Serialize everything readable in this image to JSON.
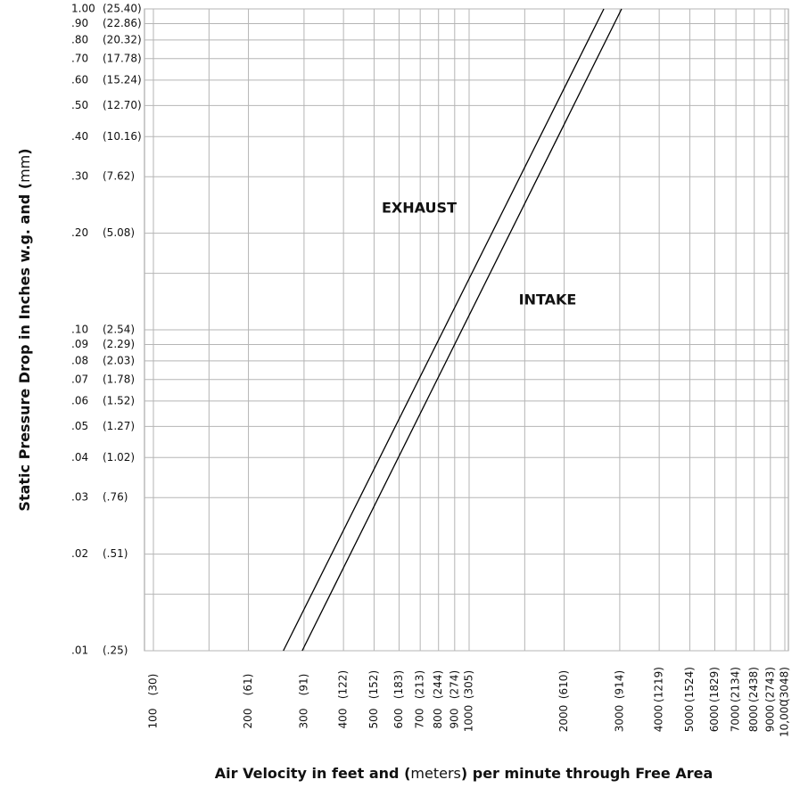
{
  "chart_data": {
    "type": "line",
    "xlog": true,
    "ylog": true,
    "grid": true,
    "x_label": [
      "Air Velocity in feet and (",
      "meters",
      ") per minute through Free Area"
    ],
    "y_label": [
      "Static Pressure Drop in Inches w.g. and (",
      "mm",
      ")"
    ],
    "xlim": [
      100,
      10000
    ],
    "ylim": [
      0.01,
      1.0
    ],
    "xticks": [
      {
        "value": 100,
        "label": "100"
      },
      {
        "value": 150,
        "label": null
      },
      {
        "value": 200,
        "label": "200"
      },
      {
        "value": 300,
        "label": "300"
      },
      {
        "value": 400,
        "label": "400"
      },
      {
        "value": 500,
        "label": "500"
      },
      {
        "value": 600,
        "label": "600"
      },
      {
        "value": 700,
        "label": "700"
      },
      {
        "value": 800,
        "label": "800"
      },
      {
        "value": 900,
        "label": "900"
      },
      {
        "value": 1000,
        "label": "1000"
      },
      {
        "value": 1500,
        "label": null
      },
      {
        "value": 2000,
        "label": "2000"
      },
      {
        "value": 3000,
        "label": "3000"
      },
      {
        "value": 4000,
        "label": "4000"
      },
      {
        "value": 5000,
        "label": "5000"
      },
      {
        "value": 6000,
        "label": "6000"
      },
      {
        "value": 7000,
        "label": "7000"
      },
      {
        "value": 8000,
        "label": "8000"
      },
      {
        "value": 9000,
        "label": "9000"
      },
      {
        "value": 10000,
        "label": "10,000"
      }
    ],
    "xtick_meters": [
      "(30)",
      null,
      "(61)",
      "(91)",
      "(122)",
      "(152)",
      "(183)",
      "(213)",
      "(244)",
      "(274)",
      "(305)",
      null,
      "(610)",
      "(914)",
      "(1219)",
      "(1524)",
      "(1829)",
      "(2134)",
      "(2438)",
      "(2743)",
      "(3048)"
    ],
    "yticks": [
      {
        "value": 1.0,
        "label": "1.00"
      },
      {
        "value": 0.9,
        "label": ".90"
      },
      {
        "value": 0.8,
        "label": ".80"
      },
      {
        "value": 0.7,
        "label": ".70"
      },
      {
        "value": 0.6,
        "label": ".60"
      },
      {
        "value": 0.5,
        "label": ".50"
      },
      {
        "value": 0.4,
        "label": ".40"
      },
      {
        "value": 0.3,
        "label": ".30"
      },
      {
        "value": 0.2,
        "label": ".20"
      },
      {
        "value": 0.15,
        "label": null
      },
      {
        "value": 0.1,
        "label": ".10"
      },
      {
        "value": 0.09,
        "label": ".09"
      },
      {
        "value": 0.08,
        "label": ".08"
      },
      {
        "value": 0.07,
        "label": ".07"
      },
      {
        "value": 0.06,
        "label": ".06"
      },
      {
        "value": 0.05,
        "label": ".05"
      },
      {
        "value": 0.04,
        "label": ".04"
      },
      {
        "value": 0.03,
        "label": ".03"
      },
      {
        "value": 0.02,
        "label": ".02"
      },
      {
        "value": 0.015,
        "label": null
      },
      {
        "value": 0.01,
        "label": ".01"
      }
    ],
    "ytick_mm": [
      "(25.40)",
      "(22.86)",
      "(20.32)",
      "(17.78)",
      "(15.24)",
      "(12.70)",
      "(10.16)",
      "(7.62)",
      "(5.08)",
      null,
      "(2.54)",
      "(2.29)",
      "(2.03)",
      "(1.78)",
      "(1.52)",
      "(1.27)",
      "(1.02)",
      "(.76)",
      "(.51)",
      null,
      "(.25)"
    ],
    "series": [
      {
        "name": "EXHAUST",
        "color": "#000000",
        "x": [
          258,
          2671
        ],
        "values": [
          0.01,
          1.0
        ]
      },
      {
        "name": "INTAKE",
        "color": "#000000",
        "x": [
          296,
          3041
        ],
        "values": [
          0.01,
          1.0
        ]
      }
    ]
  }
}
